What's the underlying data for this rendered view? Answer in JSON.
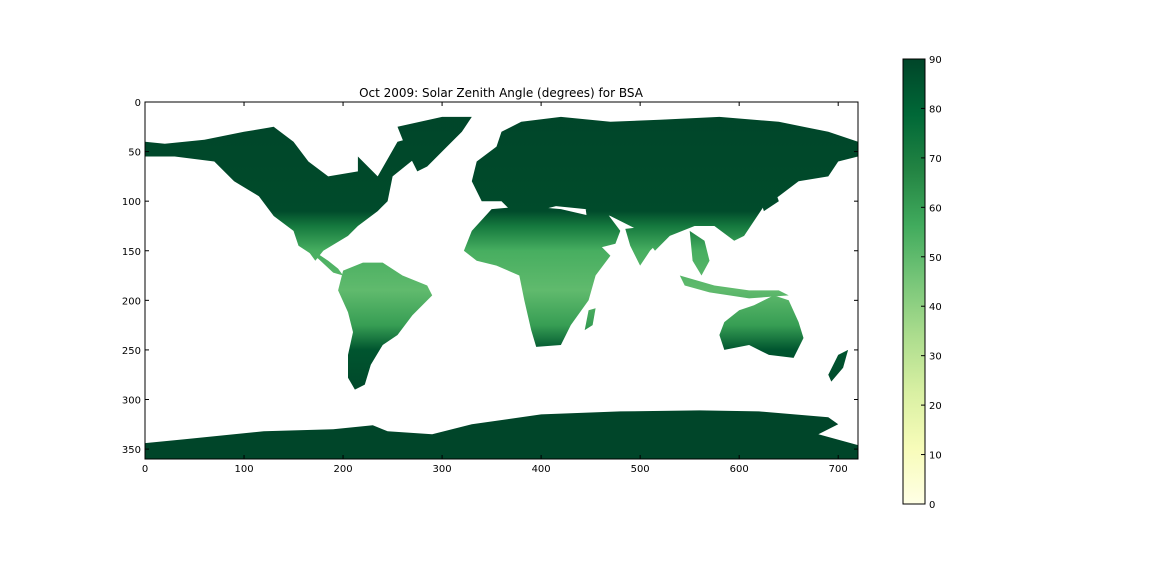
{
  "chart_data": {
    "type": "heatmap",
    "title": "Oct 2009: Solar Zenith Angle (degrees) for BSA",
    "xlim": [
      0,
      720
    ],
    "ylim": [
      360,
      0
    ],
    "x_ticks": [
      0,
      100,
      200,
      300,
      400,
      500,
      600,
      700
    ],
    "y_ticks": [
      0,
      50,
      100,
      150,
      200,
      250,
      300,
      350
    ],
    "grid": false,
    "colorbar": {
      "range": [
        0,
        90
      ],
      "ticks": [
        0,
        10,
        20,
        30,
        40,
        50,
        60,
        70,
        80,
        90
      ],
      "colormap": "YlGn",
      "colors": [
        "#ffffe5",
        "#f7fcb9",
        "#d9f0a3",
        "#addd8e",
        "#78c679",
        "#41ab5d",
        "#238443",
        "#006837",
        "#004529"
      ]
    },
    "value_by_row": [
      {
        "row": 0,
        "angle": 90
      },
      {
        "row": 110,
        "angle": 88
      },
      {
        "row": 125,
        "angle": 72
      },
      {
        "row": 150,
        "angle": 55
      },
      {
        "row": 190,
        "angle": 50
      },
      {
        "row": 225,
        "angle": 60
      },
      {
        "row": 250,
        "angle": 85
      },
      {
        "row": 300,
        "angle": 90
      },
      {
        "row": 360,
        "angle": 90
      }
    ],
    "no_data_value": "ocean (blank)",
    "land_regions": [
      {
        "name": "Antarctica",
        "polygon": [
          [
            0,
            344
          ],
          [
            40,
            340
          ],
          [
            120,
            332
          ],
          [
            190,
            330
          ],
          [
            230,
            326
          ],
          [
            245,
            332
          ],
          [
            290,
            335
          ],
          [
            330,
            325
          ],
          [
            400,
            315
          ],
          [
            480,
            312
          ],
          [
            560,
            311
          ],
          [
            620,
            312
          ],
          [
            690,
            318
          ],
          [
            700,
            325
          ],
          [
            680,
            335
          ],
          [
            720,
            346
          ],
          [
            720,
            360
          ],
          [
            0,
            360
          ]
        ]
      },
      {
        "name": "North America",
        "polygon": [
          [
            0,
            40
          ],
          [
            20,
            42
          ],
          [
            60,
            38
          ],
          [
            100,
            30
          ],
          [
            130,
            25
          ],
          [
            150,
            40
          ],
          [
            165,
            60
          ],
          [
            185,
            75
          ],
          [
            215,
            70
          ],
          [
            215,
            55
          ],
          [
            235,
            75
          ],
          [
            255,
            40
          ],
          [
            300,
            28
          ],
          [
            300,
            40
          ],
          [
            275,
            55
          ],
          [
            250,
            75
          ],
          [
            245,
            100
          ],
          [
            235,
            110
          ],
          [
            215,
            125
          ],
          [
            205,
            135
          ],
          [
            180,
            150
          ],
          [
            172,
            160
          ],
          [
            150,
            130
          ],
          [
            130,
            115
          ],
          [
            115,
            95
          ],
          [
            90,
            80
          ],
          [
            70,
            60
          ],
          [
            30,
            55
          ],
          [
            0,
            55
          ]
        ]
      },
      {
        "name": "Greenland",
        "polygon": [
          [
            255,
            25
          ],
          [
            300,
            15
          ],
          [
            330,
            15
          ],
          [
            320,
            30
          ],
          [
            305,
            45
          ],
          [
            285,
            65
          ],
          [
            275,
            70
          ],
          [
            265,
            50
          ]
        ]
      },
      {
        "name": "Central America",
        "polygon": [
          [
            150,
            130
          ],
          [
            170,
            150
          ],
          [
            185,
            160
          ],
          [
            195,
            168
          ],
          [
            200,
            175
          ],
          [
            190,
            172
          ],
          [
            175,
            158
          ],
          [
            155,
            145
          ]
        ]
      },
      {
        "name": "South America",
        "polygon": [
          [
            200,
            170
          ],
          [
            220,
            162
          ],
          [
            240,
            162
          ],
          [
            260,
            175
          ],
          [
            285,
            185
          ],
          [
            290,
            195
          ],
          [
            270,
            215
          ],
          [
            255,
            235
          ],
          [
            240,
            245
          ],
          [
            228,
            265
          ],
          [
            222,
            285
          ],
          [
            212,
            290
          ],
          [
            205,
            278
          ],
          [
            205,
            255
          ],
          [
            210,
            232
          ],
          [
            205,
            212
          ],
          [
            195,
            190
          ]
        ]
      },
      {
        "name": "Eurasia",
        "polygon": [
          [
            330,
            80
          ],
          [
            335,
            60
          ],
          [
            355,
            45
          ],
          [
            360,
            30
          ],
          [
            380,
            20
          ],
          [
            420,
            15
          ],
          [
            470,
            20
          ],
          [
            520,
            18
          ],
          [
            580,
            15
          ],
          [
            640,
            20
          ],
          [
            690,
            30
          ],
          [
            720,
            40
          ],
          [
            720,
            55
          ],
          [
            700,
            60
          ],
          [
            690,
            75
          ],
          [
            660,
            80
          ],
          [
            640,
            95
          ],
          [
            625,
            105
          ],
          [
            615,
            120
          ],
          [
            605,
            135
          ],
          [
            595,
            140
          ],
          [
            575,
            125
          ],
          [
            555,
            125
          ],
          [
            530,
            135
          ],
          [
            515,
            150
          ],
          [
            500,
            130
          ],
          [
            470,
            115
          ],
          [
            445,
            108
          ],
          [
            415,
            105
          ],
          [
            395,
            110
          ],
          [
            370,
            110
          ],
          [
            360,
            100
          ],
          [
            340,
            100
          ]
        ]
      },
      {
        "name": "Africa",
        "polygon": [
          [
            330,
            130
          ],
          [
            350,
            108
          ],
          [
            385,
            105
          ],
          [
            420,
            108
          ],
          [
            450,
            115
          ],
          [
            455,
            140
          ],
          [
            470,
            155
          ],
          [
            455,
            175
          ],
          [
            448,
            200
          ],
          [
            430,
            225
          ],
          [
            420,
            245
          ],
          [
            395,
            247
          ],
          [
            390,
            230
          ],
          [
            383,
            200
          ],
          [
            378,
            175
          ],
          [
            355,
            165
          ],
          [
            335,
            160
          ],
          [
            322,
            150
          ]
        ]
      },
      {
        "name": "Arabia",
        "polygon": [
          [
            445,
            108
          ],
          [
            465,
            110
          ],
          [
            480,
            130
          ],
          [
            475,
            143
          ],
          [
            455,
            148
          ],
          [
            448,
            130
          ]
        ]
      },
      {
        "name": "India",
        "polygon": [
          [
            485,
            128
          ],
          [
            510,
            125
          ],
          [
            525,
            135
          ],
          [
            510,
            150
          ],
          [
            500,
            165
          ],
          [
            490,
            145
          ]
        ]
      },
      {
        "name": "Southeast Asia",
        "polygon": [
          [
            550,
            130
          ],
          [
            565,
            140
          ],
          [
            570,
            160
          ],
          [
            562,
            175
          ],
          [
            553,
            160
          ]
        ]
      },
      {
        "name": "Madagascar",
        "polygon": [
          [
            448,
            210
          ],
          [
            455,
            208
          ],
          [
            452,
            225
          ],
          [
            444,
            230
          ]
        ]
      },
      {
        "name": "Indonesia",
        "polygon": [
          [
            540,
            175
          ],
          [
            575,
            185
          ],
          [
            610,
            190
          ],
          [
            640,
            190
          ],
          [
            650,
            195
          ],
          [
            610,
            198
          ],
          [
            570,
            192
          ],
          [
            545,
            185
          ]
        ]
      },
      {
        "name": "Australia",
        "polygon": [
          [
            585,
            222
          ],
          [
            600,
            210
          ],
          [
            615,
            205
          ],
          [
            635,
            195
          ],
          [
            650,
            200
          ],
          [
            660,
            222
          ],
          [
            665,
            238
          ],
          [
            655,
            258
          ],
          [
            630,
            255
          ],
          [
            610,
            245
          ],
          [
            585,
            250
          ],
          [
            580,
            235
          ]
        ]
      },
      {
        "name": "New Zealand",
        "polygon": [
          [
            700,
            255
          ],
          [
            710,
            250
          ],
          [
            705,
            268
          ],
          [
            693,
            282
          ],
          [
            690,
            275
          ]
        ]
      },
      {
        "name": "Japan",
        "polygon": [
          [
            620,
            95
          ],
          [
            635,
            85
          ],
          [
            640,
            100
          ],
          [
            625,
            110
          ]
        ]
      },
      {
        "name": "UK",
        "polygon": [
          [
            348,
            65
          ],
          [
            355,
            62
          ],
          [
            358,
            78
          ],
          [
            350,
            82
          ]
        ]
      }
    ]
  }
}
